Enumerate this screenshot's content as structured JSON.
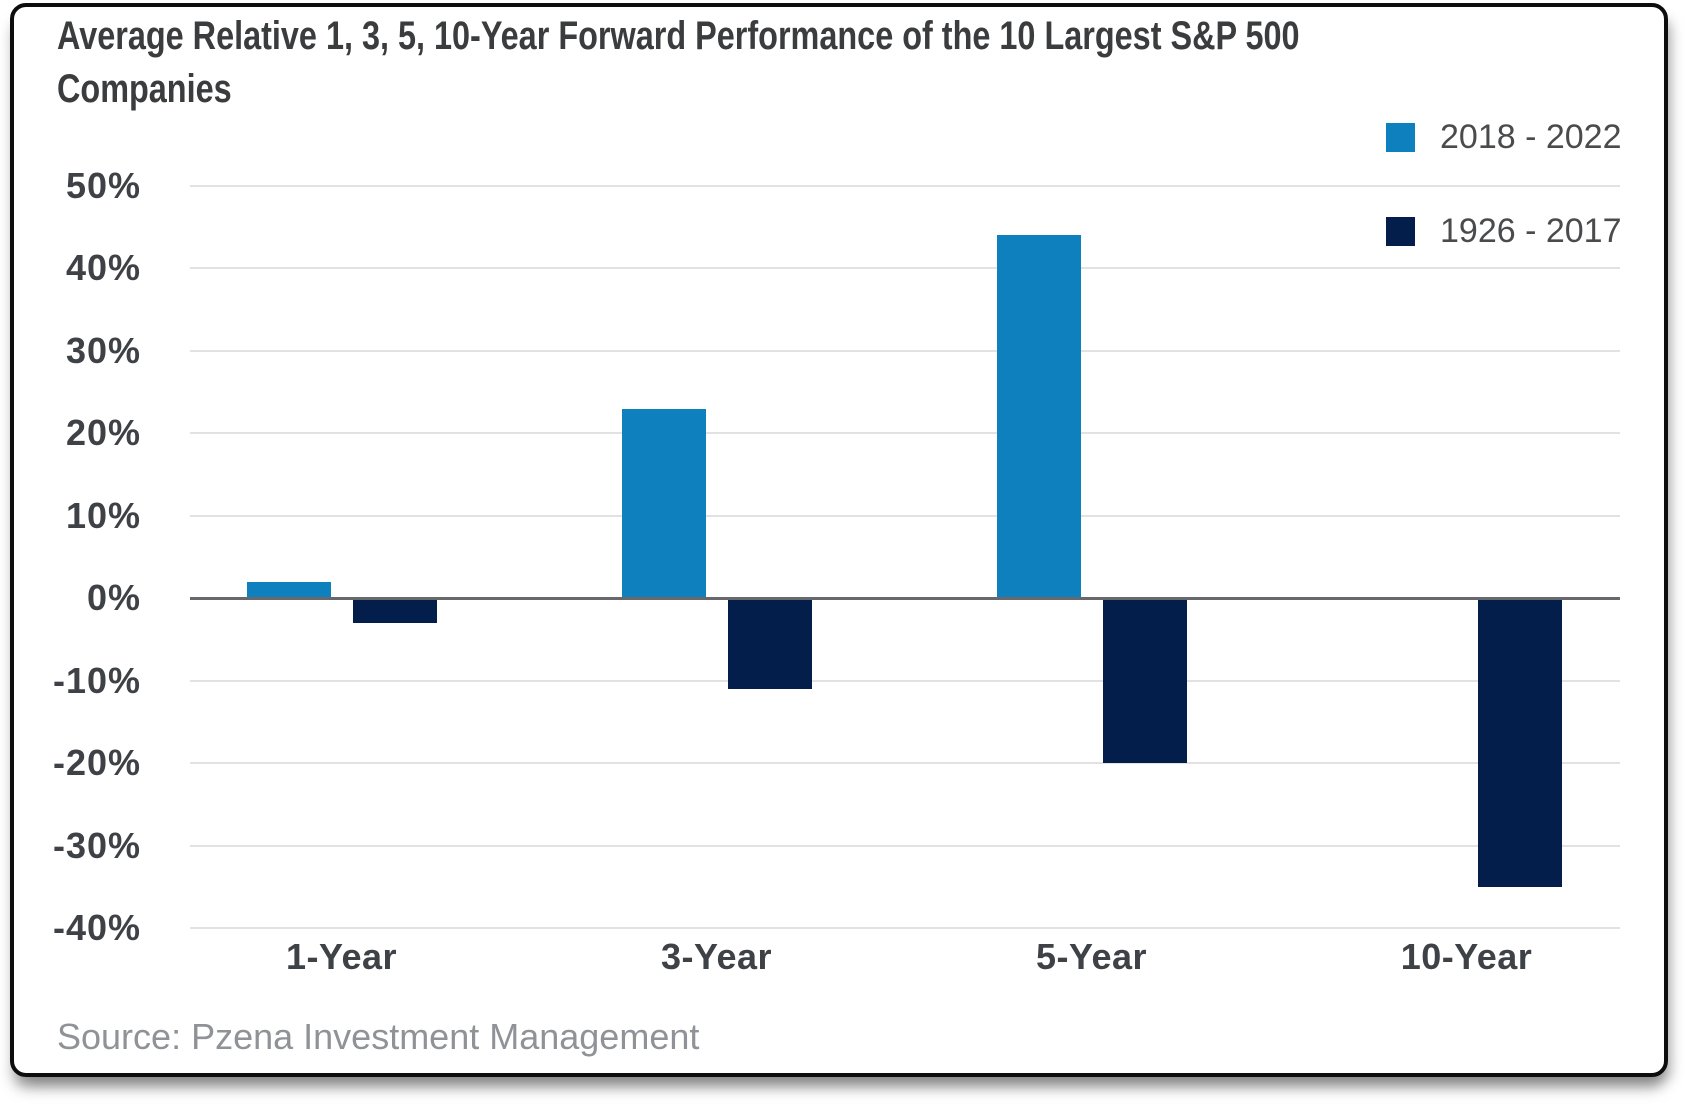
{
  "header": {
    "title_line1": "Average Relative 1, 3, 5, 10-Year Forward Performance of the 10 Largest S&P 500",
    "title_line2": "Companies"
  },
  "footer": {
    "source": "Source: Pzena Investment Management"
  },
  "chart_data": {
    "type": "bar",
    "title": "Average Relative 1, 3, 5, 10-Year Forward Performance of the 10 Largest S&P 500 Companies",
    "categories": [
      "1-Year",
      "3-Year",
      "5-Year",
      "10-Year"
    ],
    "series": [
      {
        "name": "2018 - 2022",
        "color": "#0d80bd",
        "values": [
          2,
          23,
          44,
          null
        ]
      },
      {
        "name": "1926 - 2017",
        "color": "#041e4c",
        "values": [
          -3,
          -11,
          -20,
          -35
        ]
      }
    ],
    "xlabel": "",
    "ylabel": "",
    "y_ticks": [
      "50%",
      "40%",
      "30%",
      "20%",
      "10%",
      "0%",
      "-10%",
      "-20%",
      "-30%",
      "-40%"
    ],
    "y_tick_values": [
      50,
      40,
      30,
      20,
      10,
      0,
      -10,
      -20,
      -30,
      -40
    ],
    "ylim": [
      -40,
      50
    ],
    "grid": "horizontal",
    "legend_position": "top-right",
    "source": "Source: Pzena Investment Management"
  },
  "colors": {
    "gridline": "#e2e2e2",
    "zero_axis": "#67686b",
    "tick_label": "#3e4247",
    "title_text": "#3a3c3e",
    "legend_text": "#4a4b4d",
    "source_text": "#8f9296"
  }
}
